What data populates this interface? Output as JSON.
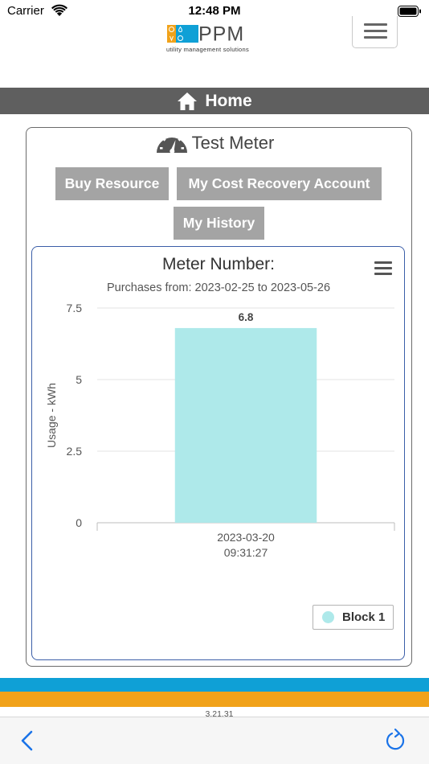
{
  "status_bar": {
    "carrier": "Carrier",
    "time": "12:48 PM"
  },
  "header": {
    "logo_text": "PPM",
    "logo_tagline": "utility management solutions",
    "colors": {
      "logo_orange": "#f1a21a",
      "logo_blue": "#0fa0d6"
    }
  },
  "nav": {
    "home_label": "Home",
    "home_icon": "home-icon"
  },
  "meter": {
    "name": "Test Meter",
    "icon": "gauge-icon"
  },
  "buttons": {
    "buy_resource": "Buy Resource",
    "cost_recovery": "My Cost Recovery Account",
    "history": "My History"
  },
  "chart": {
    "title": "Meter Number:",
    "subtitle": "Purchases from: 2023-02-25 to 2023-05-26",
    "menu_icon": "hamburger-icon",
    "legend_label": "Block 1"
  },
  "chart_data": {
    "type": "bar",
    "title": "Meter Number:",
    "subtitle": "Purchases from: 2023-02-25 to 2023-05-26",
    "xlabel": "",
    "ylabel": "Usage - kWh",
    "categories": [
      "2023-03-20 09:31:27"
    ],
    "category_lines": [
      [
        "2023-03-20",
        "09:31:27"
      ]
    ],
    "series": [
      {
        "name": "Block 1",
        "values": [
          6.8
        ],
        "color": "#aee9ea"
      }
    ],
    "data_labels": [
      "6.8"
    ],
    "ylim": [
      0,
      7.5
    ],
    "yticks": [
      0,
      2.5,
      5,
      7.5
    ],
    "ytick_labels": [
      "0",
      "2.5",
      "5",
      "7.5"
    ],
    "grid": true,
    "legend_position": "bottom-right"
  },
  "footer": {
    "version": "3.21.31",
    "colors": {
      "stripe_top": "#0fa0d6",
      "stripe_bottom": "#f1a21a"
    }
  },
  "browser": {
    "back_icon": "back-chevron-icon",
    "reload_icon": "reload-icon"
  }
}
